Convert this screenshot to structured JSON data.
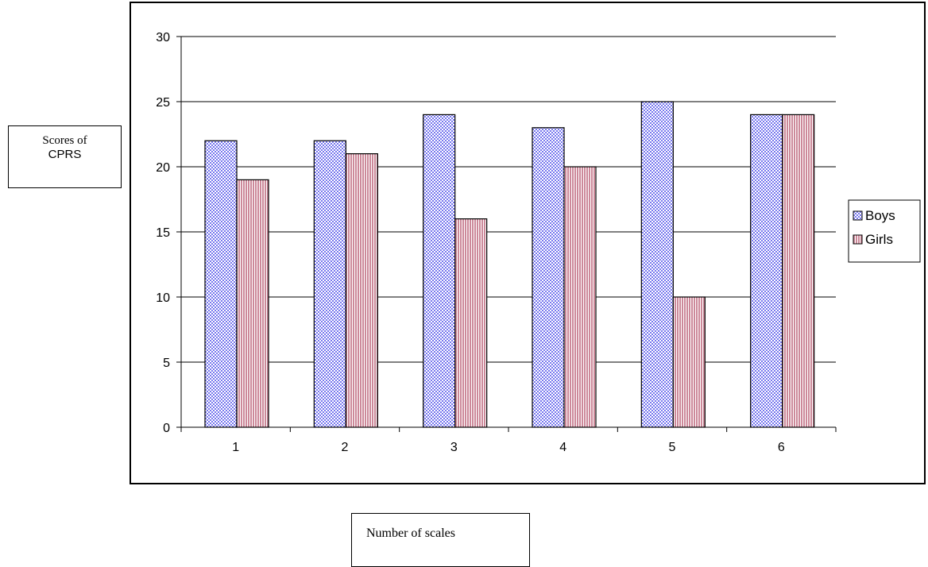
{
  "chart_data": {
    "type": "bar",
    "categories": [
      "1",
      "2",
      "3",
      "4",
      "5",
      "6"
    ],
    "series": [
      {
        "name": "Boys",
        "values": [
          22,
          22,
          24,
          23,
          25,
          24
        ],
        "color": "#9999ff"
      },
      {
        "name": "Girls",
        "values": [
          19,
          21,
          16,
          20,
          10,
          24
        ],
        "color": "#cc99aa"
      }
    ],
    "ylim": [
      0,
      30
    ],
    "yticks": [
      0,
      5,
      10,
      15,
      20,
      25,
      30
    ],
    "grid": true,
    "legend": "right",
    "ylabel": [
      "Scores of",
      "CPRS"
    ],
    "xlabel": "Number of scales"
  }
}
